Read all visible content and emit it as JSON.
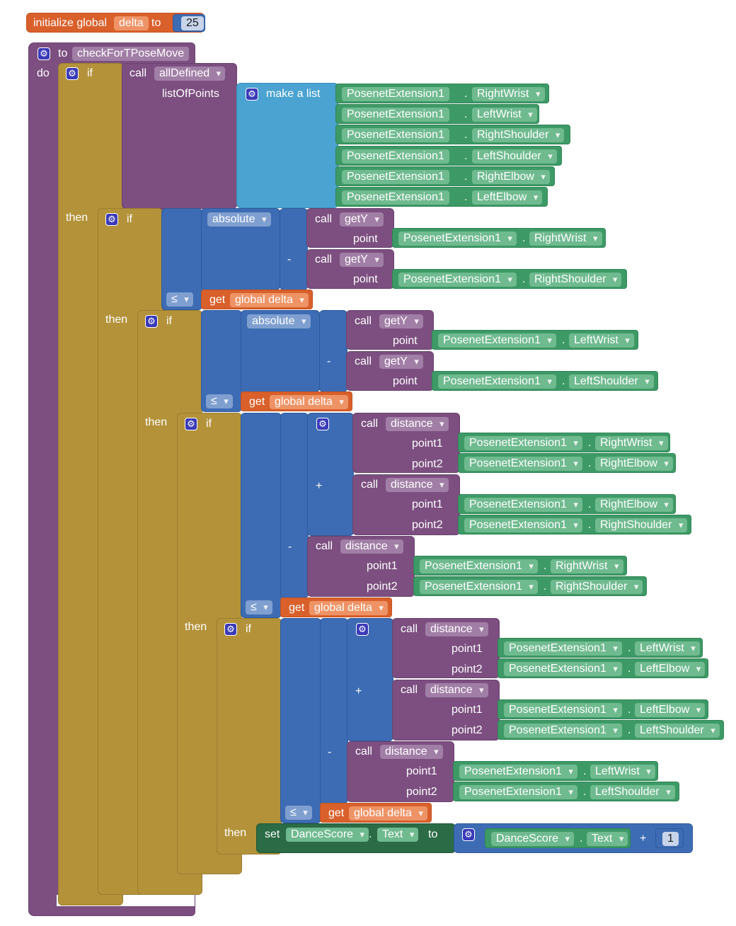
{
  "colors": {
    "procedure": "#7c4f80",
    "control": "#b3923a",
    "math": "#3d6cb4",
    "list": "#4aa3d0",
    "variable": "#d9602b",
    "component": "#3d9a66",
    "setter": "#2b6b45"
  },
  "icons": {
    "mutator": "gear-icon",
    "dropdown": "chevron-down-icon"
  },
  "global_init": {
    "initialize": "initialize global",
    "name": "delta",
    "to": "to",
    "value": "25"
  },
  "procedure": {
    "to": "to",
    "name": "checkForTPoseMove",
    "do": "do"
  },
  "kw": {
    "if": "if",
    "then": "then",
    "call": "call",
    "point": "point",
    "point1": "point1",
    "point2": "point2",
    "get": "get",
    "le": "≤",
    "minus": "-",
    "plus": "+",
    "dot": ".",
    "set": "set",
    "to": "to"
  },
  "fn": {
    "all_defined": "allDefined",
    "list_of_points": "listOfPoints",
    "make_list": "make a list",
    "get_y": "getY",
    "absolute": "absolute",
    "distance": "distance",
    "global_delta": "global delta"
  },
  "comp": "PosenetExtension1",
  "make_list_items": [
    "RightWrist",
    "LeftWrist",
    "RightShoulder",
    "LeftShoulder",
    "RightElbow",
    "LeftElbow"
  ],
  "pts": {
    "RightWrist": "RightWrist",
    "LeftWrist": "LeftWrist",
    "RightShoulder": "RightShoulder",
    "LeftShoulder": "LeftShoulder",
    "RightElbow": "RightElbow",
    "LeftElbow": "LeftElbow"
  },
  "set_block": {
    "component": "DanceScore",
    "property": "Text",
    "to": "to",
    "get_component": "DanceScore",
    "get_property": "Text",
    "increment": "1"
  }
}
